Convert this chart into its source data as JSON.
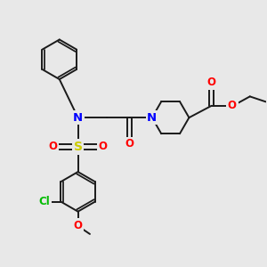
{
  "bg_color": "#e8e8e8",
  "bond_color": "#1a1a1a",
  "atom_colors": {
    "N": "#0000ff",
    "O": "#ff0000",
    "S": "#cccc00",
    "Cl": "#00bb00",
    "C": "#1a1a1a"
  },
  "bond_width": 1.4,
  "font_size": 8.5,
  "figsize": [
    3.0,
    3.0
  ],
  "dpi": 100
}
